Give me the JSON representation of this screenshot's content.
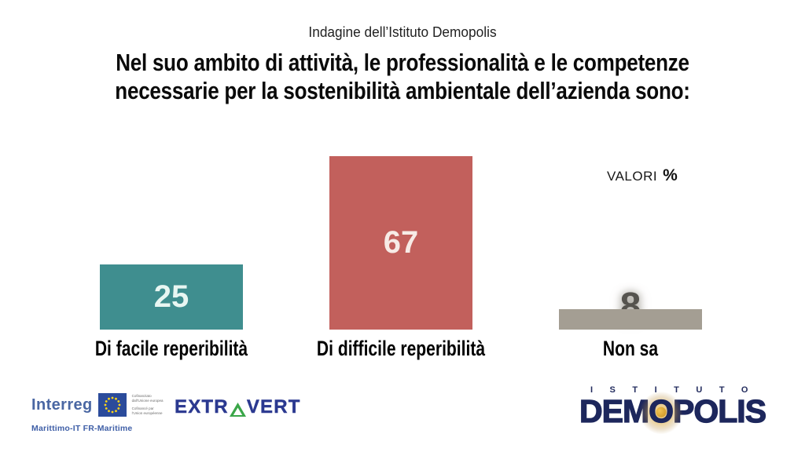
{
  "header": {
    "subtitle": "Indagine dell’Istituto Demopolis",
    "title_line1": "Nel suo ambito di attività, le professionalità e le competenze",
    "title_line2": "necessarie per la sostenibilità ambientale dell’azienda sono:"
  },
  "note": {
    "label": "VALORI",
    "symbol": "%"
  },
  "chart_data": {
    "type": "bar",
    "categories": [
      "Di facile reperibilità",
      "Di difficile reperibilità",
      "Non sa"
    ],
    "values": [
      25,
      67,
      8
    ],
    "bar_colors": [
      "#3f8e8f",
      "#c2605c",
      "#a49e93"
    ],
    "value_label_colors": [
      "#e8f6f2",
      "#f7ebe6",
      "#55534e"
    ],
    "unit_note": "VALORI %",
    "ylim": [
      0,
      70
    ],
    "grid": false,
    "legend": "none",
    "orientation": "vertical"
  },
  "footer": {
    "interreg": {
      "brand": "Interreg",
      "eu_lines": [
        "Cofinanziato",
        "dall'Unione europea",
        "Cofinancé par",
        "l'Union européenne"
      ],
      "program": "Marittimo-IT FR-Maritime"
    },
    "extravert": {
      "part1": "EXTR",
      "part2": "VERT"
    },
    "demopolis": {
      "istituto": "ISTITUTO",
      "part1": "DEM",
      "o": "O",
      "part2": "POLIS"
    }
  }
}
